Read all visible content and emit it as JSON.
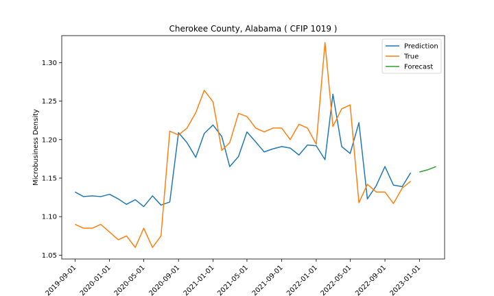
{
  "chart_data": {
    "type": "line",
    "title": "Cherokee County, Alabama ( CFIP 1019 )",
    "xlabel": "",
    "ylabel": "Microbusiness Density",
    "ylim": [
      1.045,
      1.335
    ],
    "xlim": [
      "2019-07-16",
      "2023-03-31"
    ],
    "grid": false,
    "legend_position": "top-right",
    "x_ticks": [
      "2019-09-01",
      "2020-01-01",
      "2020-05-01",
      "2020-09-01",
      "2021-01-01",
      "2021-05-01",
      "2021-09-01",
      "2022-01-01",
      "2022-05-01",
      "2022-09-01",
      "2023-01-01"
    ],
    "y_ticks": [
      "1.05",
      "1.10",
      "1.15",
      "1.20",
      "1.25",
      "1.30"
    ],
    "x": [
      "2019-09-01",
      "2019-10-01",
      "2019-11-01",
      "2019-12-01",
      "2020-01-01",
      "2020-02-01",
      "2020-03-01",
      "2020-04-01",
      "2020-05-01",
      "2020-06-01",
      "2020-07-01",
      "2020-08-01",
      "2020-09-01",
      "2020-10-01",
      "2020-11-01",
      "2020-12-01",
      "2021-01-01",
      "2021-02-01",
      "2021-03-01",
      "2021-04-01",
      "2021-05-01",
      "2021-06-01",
      "2021-07-01",
      "2021-08-01",
      "2021-09-01",
      "2021-10-01",
      "2021-11-01",
      "2021-12-01",
      "2022-01-01",
      "2022-02-01",
      "2022-03-01",
      "2022-04-01",
      "2022-05-01",
      "2022-06-01",
      "2022-07-01",
      "2022-08-01",
      "2022-09-01",
      "2022-10-01",
      "2022-11-01",
      "2022-12-01"
    ],
    "series": [
      {
        "name": "Prediction",
        "color": "#1f77b4",
        "values": [
          1.132,
          1.126,
          1.127,
          1.126,
          1.129,
          1.123,
          1.116,
          1.122,
          1.113,
          1.127,
          1.115,
          1.119,
          1.209,
          1.196,
          1.177,
          1.208,
          1.219,
          1.204,
          1.165,
          1.178,
          1.21,
          1.197,
          1.184,
          1.188,
          1.191,
          1.189,
          1.18,
          1.193,
          1.192,
          1.174,
          1.259,
          1.191,
          1.182,
          1.222,
          1.123,
          1.14,
          1.165,
          1.141,
          1.139,
          1.157
        ]
      },
      {
        "name": "True",
        "color": "#ff7f0e",
        "values": [
          1.09,
          1.085,
          1.085,
          1.09,
          1.08,
          1.07,
          1.075,
          1.06,
          1.085,
          1.06,
          1.075,
          1.211,
          1.206,
          1.215,
          1.235,
          1.264,
          1.249,
          1.186,
          1.196,
          1.234,
          1.23,
          1.215,
          1.21,
          1.215,
          1.215,
          1.2,
          1.22,
          1.215,
          1.194,
          1.326,
          1.217,
          1.24,
          1.245,
          1.118,
          1.142,
          1.132,
          1.132,
          1.117,
          1.137,
          1.146
        ]
      },
      {
        "name": "Forecast",
        "color": "#2ca02c",
        "x": [
          "2023-01-01",
          "2023-02-01",
          "2023-03-01"
        ],
        "values": [
          1.158,
          1.161,
          1.165
        ]
      }
    ]
  }
}
